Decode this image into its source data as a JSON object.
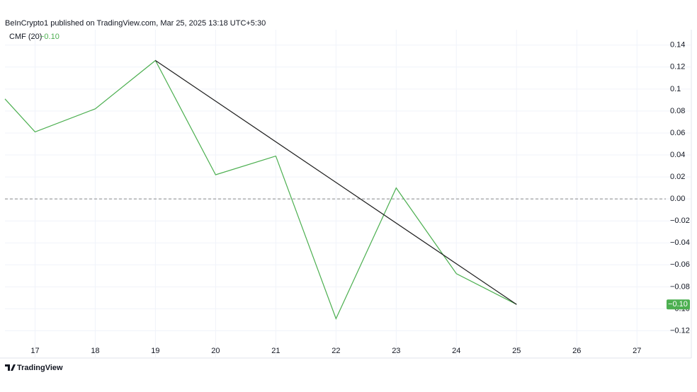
{
  "chart_data": {
    "type": "line",
    "header": "BeInCrypto1 published on TradingView.com, Mar 25, 2025 13:18 UTC+5:30",
    "brand": "TradingView",
    "series": [
      {
        "name": "CMF (20)",
        "color": "#4caf50",
        "x": [
          16.5,
          17,
          18,
          19,
          20,
          21,
          22,
          23,
          24,
          25
        ],
        "values": [
          0.091,
          0.061,
          0.082,
          0.126,
          0.022,
          0.039,
          -0.109,
          0.01,
          -0.068,
          -0.096
        ],
        "value_labels": [
          null,
          null,
          null,
          null,
          null,
          null,
          null,
          null,
          null,
          "−0.10"
        ]
      },
      {
        "color": "#1e1e1e",
        "x": [
          19,
          25
        ],
        "values": [
          0.126,
          -0.096
        ]
      }
    ],
    "xlim": [
      16.5,
      27.48
    ],
    "xticks": [
      17,
      18,
      19,
      20,
      21,
      22,
      23,
      24,
      25,
      26,
      27
    ],
    "ylim": [
      -0.13,
      0.154
    ],
    "yticks": [
      0.14,
      0.12,
      0.1,
      0.08,
      0.06,
      0.04,
      0.02,
      {
        "value": 0,
        "label": "0.00"
      },
      {
        "value": -0.02,
        "label": "−0.02"
      },
      {
        "value": -0.04,
        "label": "−0.04"
      },
      {
        "value": -0.06,
        "label": "−0.06"
      },
      {
        "value": -0.08,
        "label": "−0.08"
      },
      {
        "value": -0.1,
        "label": "−0.10"
      },
      {
        "value": -0.12,
        "label": "−0.12"
      }
    ],
    "grid": true,
    "zero_line": true
  }
}
